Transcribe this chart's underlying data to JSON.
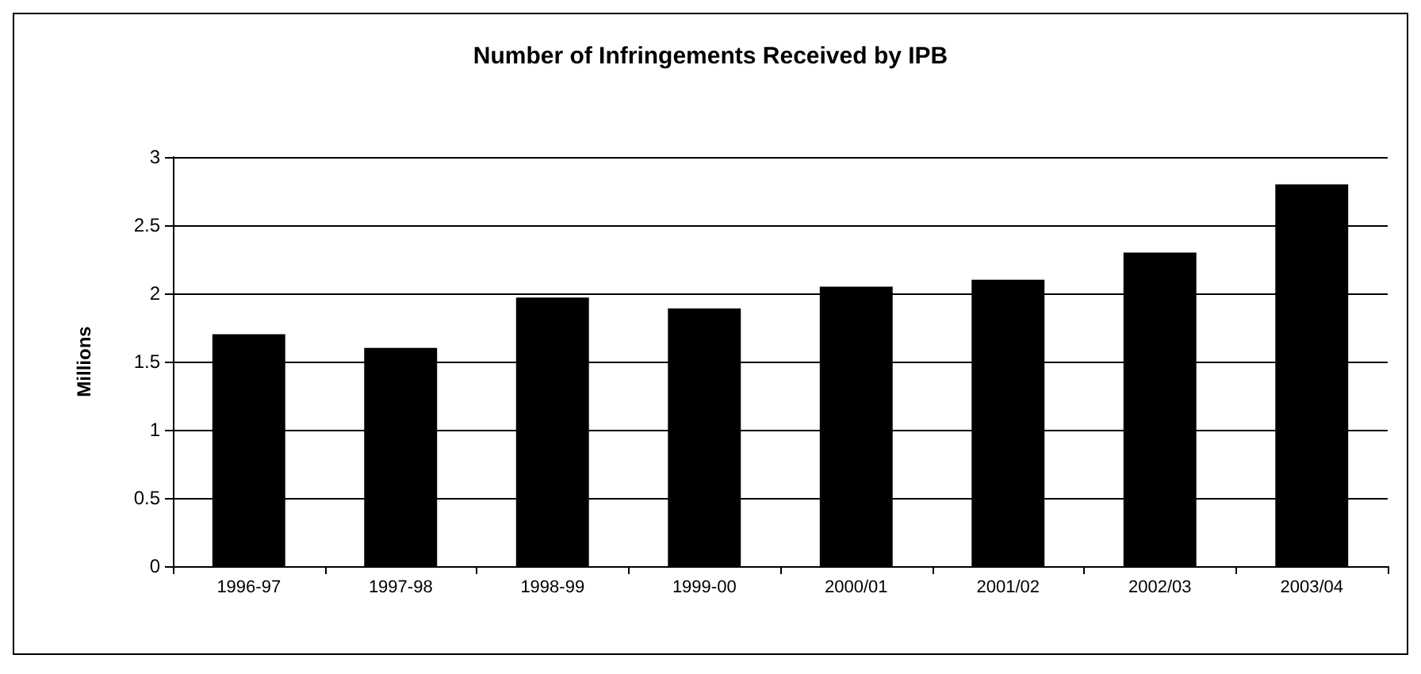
{
  "chart_data": {
    "type": "bar",
    "title": "Number of Infringements Received by IPB",
    "ylabel": "Millions",
    "categories": [
      "1996-97",
      "1997-98",
      "1998-99",
      "1999-00",
      "2000/01",
      "2001/02",
      "2002/03",
      "2003/04"
    ],
    "values": [
      1.7,
      1.6,
      1.97,
      1.89,
      2.05,
      2.1,
      2.3,
      2.8
    ],
    "color": "#000000",
    "ylim": [
      0,
      3
    ],
    "yticks": [
      0,
      0.5,
      1,
      1.5,
      2,
      2.5,
      3
    ],
    "grid": "y"
  }
}
